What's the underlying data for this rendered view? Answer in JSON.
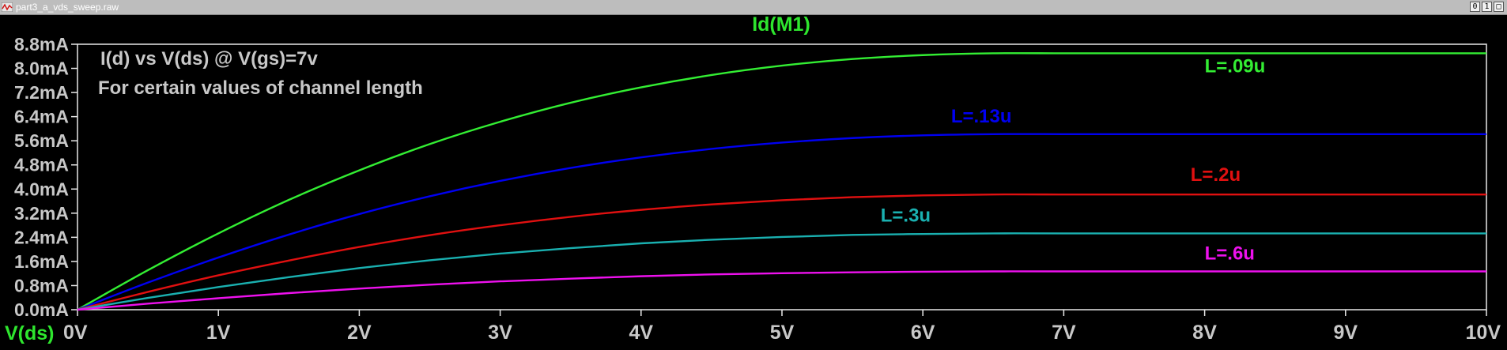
{
  "window": {
    "title": "part3_a_vds_sweep.raw",
    "controls": [
      "0",
      "1",
      "□"
    ]
  },
  "chart_data": {
    "type": "line",
    "title": "Id(M1)",
    "title_color": "#2ee62e",
    "xlabel": "V(ds)",
    "xlabel_color": "#2ee62e",
    "ylabel": "",
    "xlim": [
      0,
      10
    ],
    "ylim": [
      0,
      8.8
    ],
    "x_ticks": [
      0,
      1,
      2,
      3,
      4,
      5,
      6,
      7,
      8,
      9,
      10
    ],
    "x_tick_labels": [
      "0V",
      "1V",
      "2V",
      "3V",
      "4V",
      "5V",
      "6V",
      "7V",
      "8V",
      "9V",
      "10V"
    ],
    "y_ticks": [
      0,
      0.8,
      1.6,
      2.4,
      3.2,
      4.0,
      4.8,
      5.6,
      6.4,
      7.2,
      8.0,
      8.8
    ],
    "y_tick_labels": [
      "0.0mA",
      "0.8mA",
      "1.6mA",
      "2.4mA",
      "3.2mA",
      "4.0mA",
      "4.8mA",
      "5.6mA",
      "6.4mA",
      "7.2mA",
      "8.0mA",
      "8.8mA"
    ],
    "grid": false,
    "annotations": [
      {
        "text": "I(d) vs V(ds) @ V(gs)=7v",
        "color": "#c8c8c8"
      },
      {
        "text": "For certain values of channel length",
        "color": "#c8c8c8"
      }
    ],
    "x": [
      0,
      0.5,
      1,
      1.5,
      2,
      2.5,
      3,
      3.5,
      4,
      4.5,
      5,
      5.5,
      6,
      6.5,
      7,
      7.5,
      8,
      8.5,
      9,
      9.5,
      10
    ],
    "series": [
      {
        "name": "L=.09u",
        "color": "#33ee33",
        "values": [
          0,
          1.31,
          2.53,
          3.64,
          4.62,
          5.49,
          6.23,
          6.86,
          7.37,
          7.78,
          8.09,
          8.31,
          8.44,
          8.5,
          8.5,
          8.5,
          8.5,
          8.5,
          8.5,
          8.5,
          8.5
        ]
      },
      {
        "name": "L=.13u",
        "color": "#0000f0",
        "values": [
          0,
          0.9,
          1.73,
          2.49,
          3.17,
          3.76,
          4.27,
          4.7,
          5.05,
          5.33,
          5.54,
          5.69,
          5.78,
          5.82,
          5.82,
          5.82,
          5.82,
          5.82,
          5.82,
          5.82,
          5.82
        ]
      },
      {
        "name": "L=.2u",
        "color": "#e01010",
        "values": [
          0,
          0.59,
          1.14,
          1.63,
          2.08,
          2.47,
          2.8,
          3.08,
          3.31,
          3.49,
          3.63,
          3.73,
          3.79,
          3.82,
          3.82,
          3.82,
          3.82,
          3.82,
          3.82,
          3.82,
          3.82
        ]
      },
      {
        "name": "L=.3u",
        "color": "#1ab0b0",
        "values": [
          0,
          0.39,
          0.75,
          1.08,
          1.38,
          1.64,
          1.86,
          2.04,
          2.2,
          2.32,
          2.41,
          2.48,
          2.51,
          2.53,
          2.53,
          2.53,
          2.53,
          2.53,
          2.53,
          2.53,
          2.53
        ]
      },
      {
        "name": "L=.6u",
        "color": "#ee11ee",
        "values": [
          0,
          0.2,
          0.38,
          0.55,
          0.7,
          0.83,
          0.94,
          1.03,
          1.11,
          1.17,
          1.21,
          1.24,
          1.26,
          1.27,
          1.27,
          1.27,
          1.27,
          1.27,
          1.27,
          1.27,
          1.27
        ]
      }
    ],
    "axis_color": "#e8e8e8",
    "tick_label_color": "#c8c8c8"
  }
}
